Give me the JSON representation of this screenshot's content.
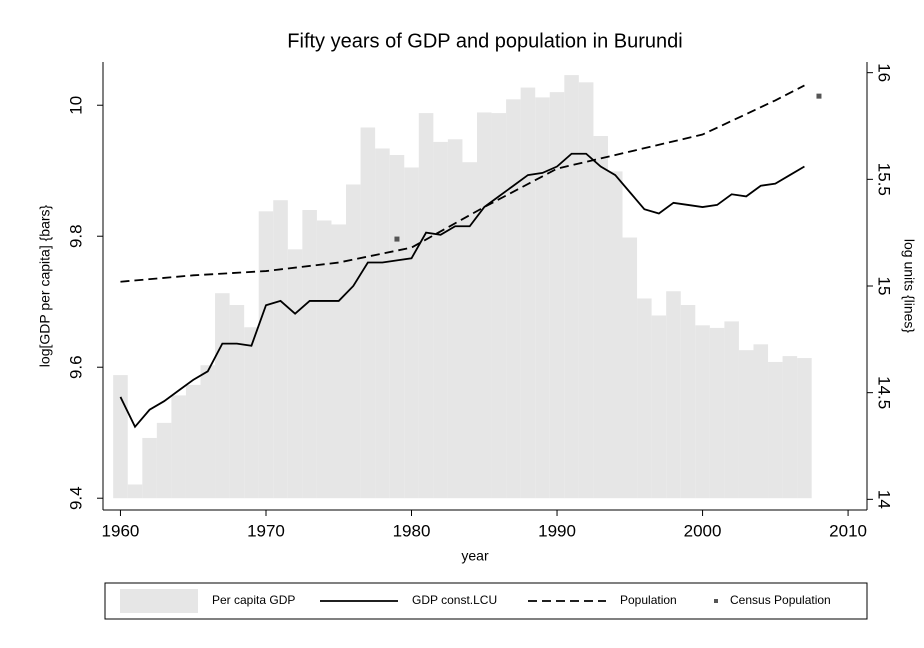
{
  "chart_data": {
    "type": "bar",
    "title": "Fifty years of GDP and population in Burundi",
    "xlabel": "year",
    "ylabel": "log[GDP per capita] {bars}",
    "y2label": "log units {lines}",
    "xlim": [
      1958.8,
      2011.3
    ],
    "xticks": [
      1960,
      1970,
      1980,
      1990,
      2000,
      2010
    ],
    "ylim": [
      9.382,
      10.066
    ],
    "yticks": [
      9.4,
      9.6,
      9.8,
      10
    ],
    "y2lim": [
      13.95,
      16.05
    ],
    "y2ticks": [
      14,
      14.5,
      15,
      15.5,
      16
    ],
    "grid": false,
    "legend": "bottom",
    "series": [
      {
        "name": "Per capita GDP",
        "type": "bar",
        "color": "#e6e6e6",
        "x": [
          1960,
          1961,
          1962,
          1963,
          1964,
          1965,
          1966,
          1967,
          1968,
          1969,
          1970,
          1971,
          1972,
          1973,
          1974,
          1975,
          1976,
          1977,
          1978,
          1979,
          1980,
          1981,
          1982,
          1983,
          1984,
          1985,
          1986,
          1987,
          1988,
          1989,
          1990,
          1991,
          1992,
          1993,
          1994,
          1995,
          1996,
          1997,
          1998,
          1999,
          2000,
          2001,
          2002,
          2003,
          2004,
          2005,
          2006,
          2007
        ],
        "values": [
          9.588,
          9.421,
          9.492,
          9.515,
          9.557,
          9.573,
          9.603,
          9.713,
          9.695,
          9.661,
          9.838,
          9.855,
          9.78,
          9.84,
          9.824,
          9.818,
          9.879,
          9.966,
          9.934,
          9.924,
          9.905,
          9.988,
          9.944,
          9.948,
          9.913,
          9.989,
          9.988,
          10.009,
          10.027,
          10.012,
          10.02,
          10.046,
          10.035,
          9.953,
          9.899,
          9.798,
          9.705,
          9.679,
          9.716,
          9.695,
          9.664,
          9.66,
          9.67,
          9.626,
          9.635,
          9.608,
          9.617,
          9.614
        ]
      },
      {
        "name": "GDP const.LCU",
        "type": "line",
        "axis": "y2",
        "color": "#000000",
        "dash": false,
        "x": [
          1960,
          1961,
          1962,
          1963,
          1964,
          1965,
          1966,
          1967,
          1968,
          1969,
          1970,
          1971,
          1972,
          1973,
          1974,
          1975,
          1976,
          1977,
          1978,
          1979,
          1980,
          1981,
          1982,
          1983,
          1984,
          1985,
          1986,
          1987,
          1988,
          1989,
          1990,
          1991,
          1992,
          1993,
          1994,
          1995,
          1996,
          1997,
          1998,
          1999,
          2000,
          2001,
          2002,
          2003,
          2004,
          2005,
          2006,
          2007
        ],
        "values": [
          14.48,
          14.34,
          14.42,
          14.46,
          14.51,
          14.56,
          14.6,
          14.73,
          14.73,
          14.72,
          14.91,
          14.93,
          14.87,
          14.93,
          14.93,
          14.93,
          15.0,
          15.11,
          15.11,
          15.12,
          15.13,
          15.25,
          15.24,
          15.28,
          15.28,
          15.37,
          15.42,
          15.47,
          15.52,
          15.53,
          15.56,
          15.62,
          15.62,
          15.56,
          15.52,
          15.44,
          15.36,
          15.34,
          15.39,
          15.38,
          15.37,
          15.38,
          15.43,
          15.42,
          15.47,
          15.48,
          15.52,
          15.56
        ]
      },
      {
        "name": "Population",
        "type": "line",
        "axis": "y2",
        "color": "#000000",
        "dash": true,
        "x": [
          1960,
          1965,
          1970,
          1975,
          1980,
          1985,
          1990,
          1995,
          2000,
          2005,
          2007
        ],
        "values": [
          15.02,
          15.05,
          15.07,
          15.11,
          15.18,
          15.37,
          15.55,
          15.63,
          15.71,
          15.87,
          15.94
        ]
      },
      {
        "name": "Census Population",
        "type": "scatter",
        "axis": "y2",
        "color": "#555555",
        "x": [
          1979,
          2008
        ],
        "values": [
          15.22,
          15.89
        ]
      }
    ]
  }
}
